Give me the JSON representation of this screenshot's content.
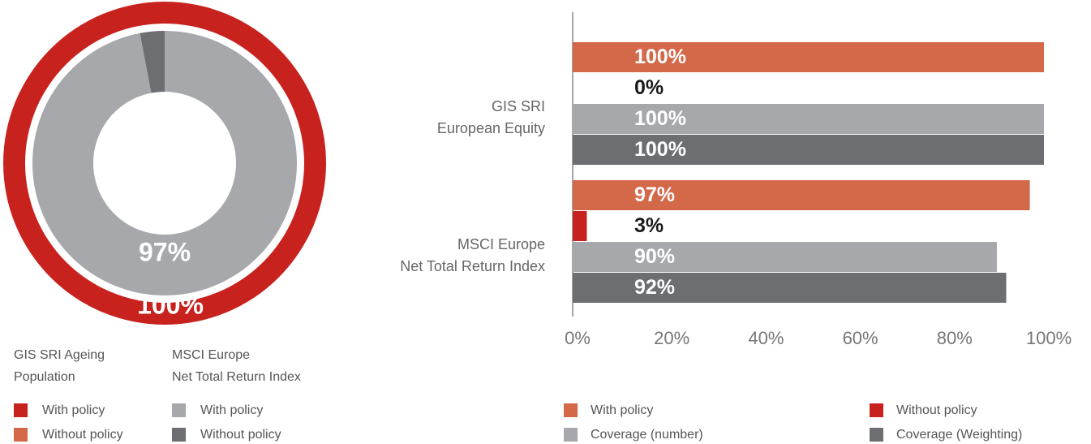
{
  "chart_data": [
    {
      "type": "donut",
      "series": [
        {
          "name": [
            "GIS SRI Ageing",
            "Population"
          ],
          "labels": [
            "With policy",
            "Without policy"
          ],
          "values": [
            100,
            0
          ],
          "value_labels": [
            "100%",
            null
          ],
          "colors": [
            "#c8221e",
            "#d4694a"
          ]
        },
        {
          "name": [
            "MSCI Europe",
            "Net Total Return Index"
          ],
          "labels": [
            "With policy",
            "Without policy"
          ],
          "values": [
            97,
            3
          ],
          "value_labels": [
            "97%",
            null
          ],
          "colors": [
            "#a7a8ab",
            "#6d6e71"
          ]
        }
      ]
    },
    {
      "type": "barh",
      "categories": [
        [
          "GIS SRI",
          "European Equity"
        ],
        [
          "MSCI Europe",
          "Net Total Return Index"
        ]
      ],
      "series": [
        {
          "name": "With policy",
          "color": "#d4694a",
          "values": [
            100,
            97
          ],
          "value_labels": [
            "100%",
            "97%"
          ]
        },
        {
          "name": "Without policy",
          "color": "#c8221e",
          "values": [
            0,
            3
          ],
          "value_labels": [
            "0%",
            "3%"
          ]
        },
        {
          "name": "Coverage (number)",
          "color": "#a7a8ab",
          "values": [
            100,
            90
          ],
          "value_labels": [
            "100%",
            "90%"
          ]
        },
        {
          "name": "Coverage (Weighting)",
          "color": "#6d6e71",
          "values": [
            100,
            92
          ],
          "value_labels": [
            "100%",
            "92%"
          ]
        }
      ],
      "xlim": [
        0,
        100
      ],
      "xticks": [
        {
          "value": 0,
          "label": "0%"
        },
        {
          "value": 20,
          "label": "20%"
        },
        {
          "value": 40,
          "label": "40%"
        },
        {
          "value": 60,
          "label": "60%"
        },
        {
          "value": 80,
          "label": "80%"
        },
        {
          "value": 100,
          "label": "100%"
        }
      ]
    }
  ]
}
